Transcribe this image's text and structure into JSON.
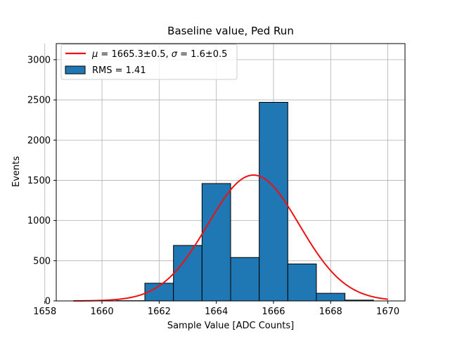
{
  "chart_data": {
    "type": "bar",
    "title": "Baseline value, Ped Run",
    "xlabel": "Sample Value [ADC Counts]",
    "ylabel": "Events",
    "xlim": [
      1658.4,
      1670.6
    ],
    "ylim": [
      0,
      3200
    ],
    "xticks": [
      1658,
      1660,
      1662,
      1664,
      1666,
      1668,
      1670
    ],
    "yticks": [
      0,
      500,
      1000,
      1500,
      2000,
      2500,
      3000
    ],
    "grid": true,
    "legend_position": "top-left",
    "bar_color": "#1f77b4",
    "bar_edge_color": "#000000",
    "fit_color": "#ee1111",
    "histogram": {
      "name": "RMS = 1.41",
      "bins": [
        {
          "left": 1658.5,
          "right": 1659.5,
          "value": 0
        },
        {
          "left": 1659.5,
          "right": 1660.5,
          "value": 0
        },
        {
          "left": 1660.5,
          "right": 1661.5,
          "value": 3
        },
        {
          "left": 1661.5,
          "right": 1662.5,
          "value": 220
        },
        {
          "left": 1662.5,
          "right": 1663.5,
          "value": 690
        },
        {
          "left": 1663.5,
          "right": 1664.5,
          "value": 1460
        },
        {
          "left": 1664.5,
          "right": 1665.5,
          "value": 540
        },
        {
          "left": 1665.5,
          "right": 1666.5,
          "value": 2470
        },
        {
          "left": 1666.5,
          "right": 1667.5,
          "value": 460
        },
        {
          "left": 1667.5,
          "right": 1668.5,
          "value": 95
        },
        {
          "left": 1668.5,
          "right": 1669.5,
          "value": 10
        }
      ]
    },
    "fit": {
      "mu_label": "μ",
      "sigma_label": "σ",
      "label_rest_1": " = 1665.3±0.5, ",
      "label_rest_2": " = 1.6±0.5",
      "amplitude": 1565,
      "mu": 1665.3,
      "sigma": 1.6,
      "x_range": [
        1659,
        1670
      ]
    }
  }
}
